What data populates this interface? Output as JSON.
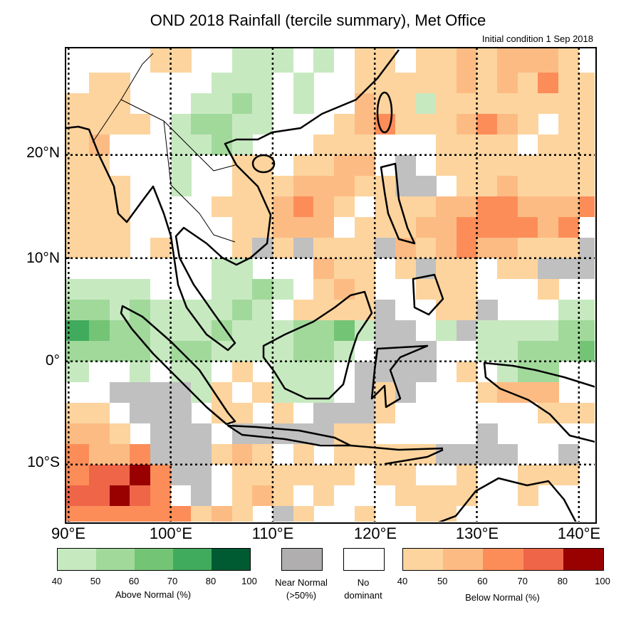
{
  "title": "OND 2018 Rainfall (tercile summary), Met Office",
  "subtitle": "Initial condition 1 Sep 2018",
  "lat_labels": [
    "20°N",
    "10°N",
    "0°",
    "10°S"
  ],
  "lon_labels": [
    "90°E",
    "100°E",
    "110°E",
    "120°E",
    "130°E",
    "140°E"
  ],
  "colors": {
    ".": "#ffffff",
    "a": "#c7e9c0",
    "b": "#a1d99b",
    "c": "#74c476",
    "d": "#41ab5d",
    "e": "#005a32",
    "n": "#c0c0c0",
    "1": "#fdd49e",
    "2": "#fdbb84",
    "3": "#fc8d59",
    "4": "#ef6548",
    "5": "#990000"
  },
  "grid_origin": {
    "lon": 90,
    "lat": 30,
    "step_deg": 2
  },
  "grid_rows": [
    "....11..aaa.a.11.11212221.",
    ".11....aaa.a..11111212131 1",
    "111...aaba.a..211a111111 11",
    "1111.abbaa...1231112321.11",
    "12...aaba...111...1111.111",
    "11...a..11.1122.n.111111 11",
    "111..a..11122211nn.1121111",
    "111....1112321.11122332223",
    "111.....11222.1112233332 3",
    "111.1...1n1n111n21232211 1n",
    ".......aa...211.1n11.11nnn",
    "aaaa...aaba.121..111...1..",
    "bbabaaaaba.1111n..11n...aa",
    "dcbbaaabaaabbcann.anaaaabb",
    "bbbbabbaaaabba.nnn..aabbbc",
    "a..a.aa.1.aaa.nnnn.1.abb..",
    "..nnnna1.1aaa.n1n...12 22.",
    "11.nnn.11.1.nnn1.......111",
    "221.nnn.nnnnn11.....n.....",
    "3223nnn121.1.11111nnnn..n.",
    "34453nn.111111.11..1..111.",
    "44543.n.121.1...1111..1...",
    "333333121.n1..1..11......."
  ],
  "legend": {
    "above": {
      "ticks": [
        "40",
        "50",
        "60",
        "70",
        "80",
        "100"
      ],
      "label": "Above Normal (%)",
      "colors": [
        "#c7e9c0",
        "#a1d99b",
        "#74c476",
        "#41ab5d",
        "#005a32"
      ]
    },
    "near_normal": {
      "label1": "Near Normal",
      "label2": "(>50%)",
      "color": "#b0aeae"
    },
    "no_dominant": {
      "label1": "No",
      "label2": "dominant"
    },
    "below": {
      "ticks": [
        "40",
        "50",
        "60",
        "70",
        "80",
        "100"
      ],
      "label": "Below Normal (%)",
      "colors": [
        "#fdd49e",
        "#fdbb84",
        "#fc8d59",
        "#ef6548",
        "#990000"
      ]
    }
  }
}
